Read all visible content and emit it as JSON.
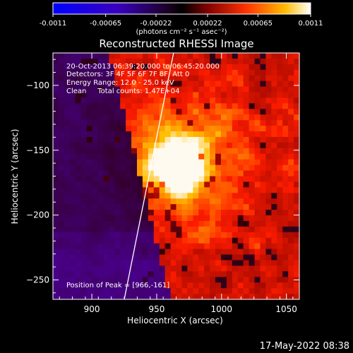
{
  "colorbar": {
    "ticks": [
      "-0.0011",
      "-0.00065",
      "-0.00022",
      "0.00022",
      "0.00065",
      "0.0011"
    ],
    "tick_values": [
      -0.0011,
      -0.00065,
      -0.00022,
      0.00022,
      0.00065,
      0.0011
    ],
    "range": [
      -0.0011,
      0.0011
    ],
    "unit_label": "(photons cm⁻² s⁻¹ asec⁻²)"
  },
  "title": "Reconstructed RHESSI Image",
  "info": {
    "line1": "20-Oct-2013 06:39:20.000 to 06:45:20.000",
    "line2": "Detectors: 3F 4F 5F 6F 7F 8F, Att 0",
    "line3": "Energy Range: 12.0 - 25.0 keV",
    "line4": "Clean     Total counts: 1.47E+04"
  },
  "peak_text": "Position of Peak = [966,-161]",
  "timestamp": "17-May-2022 08:38",
  "chart_data": {
    "type": "heatmap",
    "title": "Reconstructed RHESSI Image",
    "xlabel": "Heliocentric X (arcsec)",
    "ylabel": "Heliocentric Y (arcsec)",
    "xlim": [
      870,
      1060
    ],
    "ylim": [
      -265,
      -75
    ],
    "xticks": [
      900,
      950,
      1000,
      1050
    ],
    "yticks": [
      -100,
      -150,
      -200,
      -250
    ],
    "xtick_labels": [
      "900",
      "950",
      "1000",
      "1050"
    ],
    "ytick_labels": [
      "−100",
      "−150",
      "−200",
      "−250"
    ],
    "peak": [
      966,
      -161
    ],
    "limb_curve_x": [
      [
        925,
        -265
      ],
      [
        930,
        -240
      ],
      [
        935,
        -215
      ],
      [
        940,
        -190
      ],
      [
        945,
        -165
      ],
      [
        950,
        -140
      ],
      [
        955,
        -115
      ],
      [
        960,
        -90
      ],
      [
        963,
        -75
      ]
    ],
    "colormap": [
      "#0000ff",
      "#5500aa",
      "#000000",
      "#aa0000",
      "#ff5500",
      "#ffcc00",
      "#ffffff"
    ]
  }
}
